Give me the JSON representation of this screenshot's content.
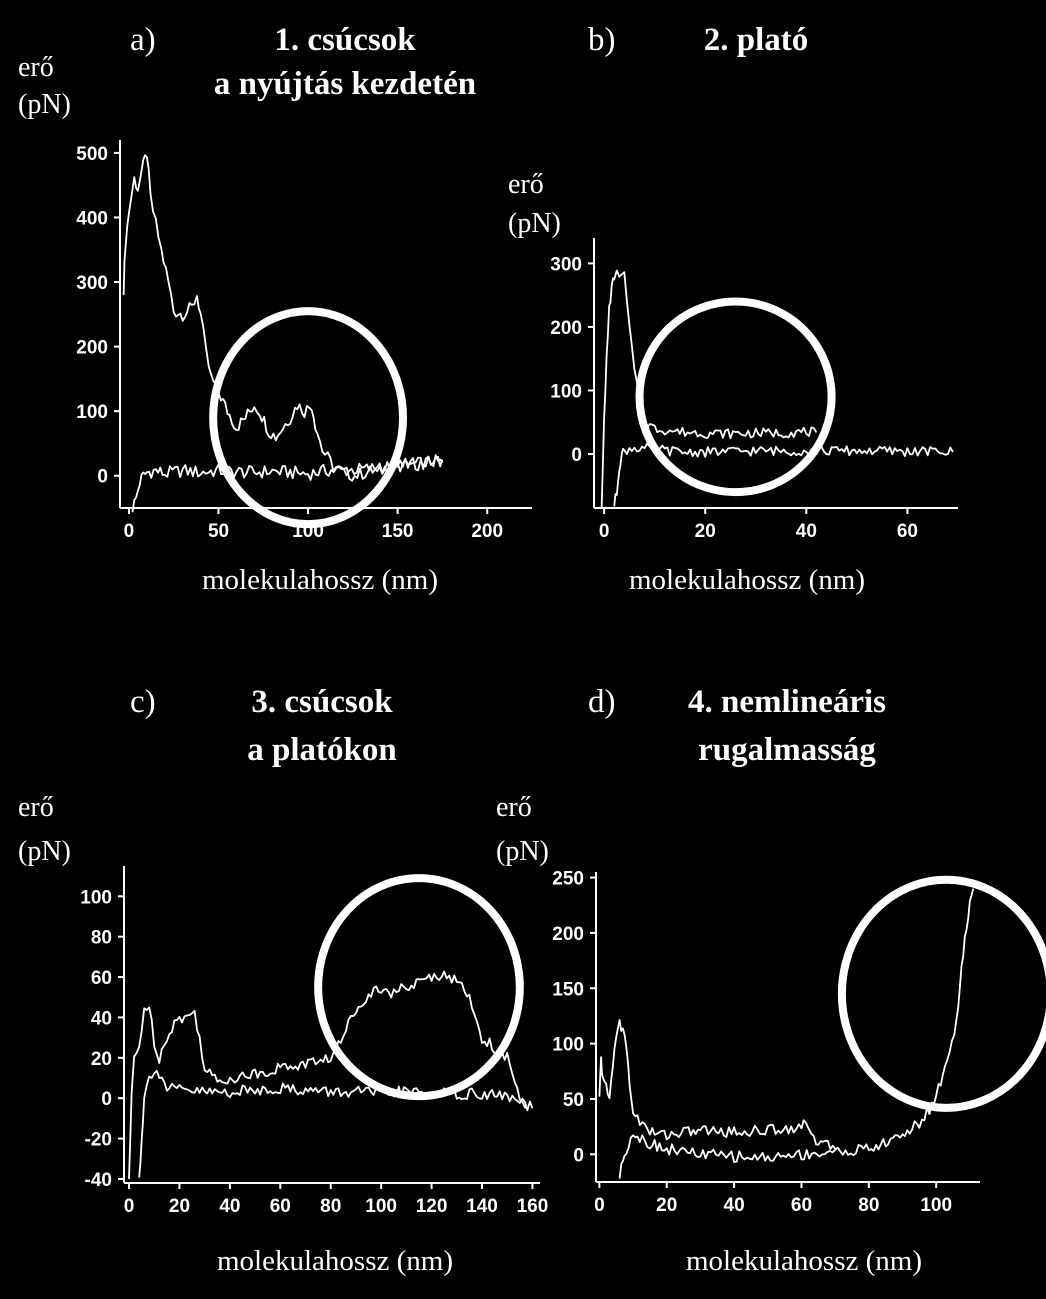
{
  "chart_data": [
    {
      "type": "line",
      "panel_letter": "a)",
      "title_lines": [
        "1. csúcsok",
        "a nyújtás kezdetén"
      ],
      "ylabel_lines": [
        "erő",
        "(pN)"
      ],
      "xlabel": "molekulahossz (nm)",
      "xticks": [
        "0",
        "50",
        "100",
        "150",
        "200"
      ],
      "yticks": [
        "500",
        "400",
        "300",
        "200",
        "100",
        "0"
      ],
      "xlim": [
        -5,
        225
      ],
      "ylim": [
        -50,
        520
      ],
      "highlight": {
        "x": 100,
        "y": 90,
        "rx": 53,
        "ry": 165
      },
      "series": [
        {
          "points": [
            [
              -3,
              290
            ],
            [
              -2,
              360
            ],
            [
              0,
              410
            ],
            [
              3,
              460
            ],
            [
              5,
              445
            ],
            [
              8,
              480
            ],
            [
              10,
              500
            ],
            [
              12,
              430
            ],
            [
              15,
              390
            ],
            [
              18,
              350
            ],
            [
              22,
              300
            ],
            [
              25,
              255
            ],
            [
              30,
              250
            ],
            [
              35,
              260
            ],
            [
              38,
              280
            ],
            [
              40,
              250
            ],
            [
              43,
              190
            ],
            [
              46,
              150
            ],
            [
              50,
              130
            ],
            [
              55,
              100
            ],
            [
              60,
              75
            ],
            [
              65,
              90
            ],
            [
              70,
              110
            ],
            [
              73,
              100
            ],
            [
              78,
              70
            ],
            [
              82,
              60
            ],
            [
              86,
              75
            ],
            [
              90,
              90
            ],
            [
              94,
              110
            ],
            [
              98,
              100
            ],
            [
              102,
              110
            ],
            [
              104,
              80
            ],
            [
              108,
              40
            ],
            [
              114,
              15
            ],
            [
              120,
              5
            ],
            [
              126,
              0
            ],
            [
              132,
              5
            ],
            [
              140,
              10
            ],
            [
              150,
              15
            ],
            [
              160,
              18
            ],
            [
              170,
              22
            ],
            [
              175,
              25
            ]
          ]
        },
        {
          "points": [
            [
              2,
              -50
            ],
            [
              4,
              -35
            ],
            [
              6,
              -10
            ],
            [
              8,
              0
            ],
            [
              10,
              5
            ],
            [
              15,
              8
            ],
            [
              20,
              3
            ],
            [
              30,
              8
            ],
            [
              40,
              5
            ],
            [
              50,
              8
            ],
            [
              60,
              6
            ],
            [
              70,
              5
            ],
            [
              80,
              7
            ],
            [
              90,
              5
            ],
            [
              100,
              3
            ],
            [
              110,
              8
            ],
            [
              120,
              8
            ],
            [
              130,
              10
            ],
            [
              140,
              12
            ],
            [
              150,
              15
            ],
            [
              160,
              18
            ],
            [
              170,
              22
            ],
            [
              175,
              20
            ]
          ]
        }
      ]
    },
    {
      "type": "line",
      "panel_letter": "b)",
      "title_lines": [
        "2. plató"
      ],
      "ylabel_lines": [
        "erő",
        "(pN)"
      ],
      "xlabel": "molekulahossz (nm)",
      "xticks": [
        "0",
        "20",
        "40",
        "60"
      ],
      "yticks": [
        "300",
        "200",
        "100",
        "0"
      ],
      "xlim": [
        -2,
        70
      ],
      "ylim": [
        -85,
        340
      ],
      "highlight": {
        "x": 26,
        "y": 90,
        "rx": 19,
        "ry": 150
      },
      "series": [
        {
          "points": [
            [
              -0.5,
              -80
            ],
            [
              0,
              50
            ],
            [
              0.5,
              150
            ],
            [
              1,
              230
            ],
            [
              1.5,
              260
            ],
            [
              2,
              280
            ],
            [
              3,
              285
            ],
            [
              4,
              280
            ],
            [
              5,
              200
            ],
            [
              6,
              130
            ],
            [
              7,
              80
            ],
            [
              8,
              50
            ],
            [
              10,
              40
            ],
            [
              15,
              35
            ],
            [
              20,
              33
            ],
            [
              25,
              32
            ],
            [
              30,
              33
            ],
            [
              35,
              33
            ],
            [
              40,
              35
            ],
            [
              42,
              34
            ]
          ]
        },
        {
          "points": [
            [
              2,
              -80
            ],
            [
              2.5,
              -60
            ],
            [
              3,
              -20
            ],
            [
              3.5,
              0
            ],
            [
              4,
              5
            ],
            [
              6,
              10
            ],
            [
              10,
              8
            ],
            [
              15,
              3
            ],
            [
              20,
              3
            ],
            [
              25,
              4
            ],
            [
              30,
              5
            ],
            [
              35,
              5
            ],
            [
              40,
              5
            ],
            [
              45,
              5
            ],
            [
              50,
              5
            ],
            [
              55,
              5
            ],
            [
              60,
              4
            ],
            [
              65,
              4
            ],
            [
              69,
              3
            ]
          ]
        }
      ]
    },
    {
      "type": "line",
      "panel_letter": "c)",
      "title_lines": [
        "3. csúcsok",
        "a platókon"
      ],
      "ylabel_lines": [
        "erő",
        "(pN)"
      ],
      "xlabel": "molekulahossz (nm)",
      "xticks": [
        "0",
        "20",
        "40",
        "60",
        "80",
        "100",
        "120",
        "140",
        "160"
      ],
      "yticks": [
        "100",
        "80",
        "60",
        "40",
        "20",
        "0",
        "-20",
        "-40"
      ],
      "xlim": [
        -2,
        163
      ],
      "ylim": [
        -42,
        115
      ],
      "highlight": {
        "x": 115,
        "y": 55,
        "rx": 40,
        "ry": 54
      },
      "series": [
        {
          "points": [
            [
              0,
              -40
            ],
            [
              1,
              0
            ],
            [
              2,
              20
            ],
            [
              4,
              25
            ],
            [
              6,
              45
            ],
            [
              8,
              45
            ],
            [
              10,
              28
            ],
            [
              12,
              20
            ],
            [
              15,
              30
            ],
            [
              18,
              38
            ],
            [
              22,
              40
            ],
            [
              26,
              42
            ],
            [
              28,
              30
            ],
            [
              30,
              15
            ],
            [
              35,
              8
            ],
            [
              40,
              10
            ],
            [
              50,
              12
            ],
            [
              60,
              15
            ],
            [
              70,
              17
            ],
            [
              80,
              20
            ],
            [
              85,
              30
            ],
            [
              88,
              40
            ],
            [
              92,
              48
            ],
            [
              96,
              52
            ],
            [
              100,
              55
            ],
            [
              105,
              52
            ],
            [
              110,
              55
            ],
            [
              115,
              57
            ],
            [
              120,
              60
            ],
            [
              125,
              62
            ],
            [
              130,
              58
            ],
            [
              135,
              50
            ],
            [
              140,
              30
            ],
            [
              145,
              25
            ],
            [
              150,
              20
            ],
            [
              152,
              10
            ],
            [
              155,
              0
            ],
            [
              158,
              -5
            ]
          ]
        },
        {
          "points": [
            [
              4,
              -40
            ],
            [
              5,
              -20
            ],
            [
              6,
              0
            ],
            [
              8,
              10
            ],
            [
              10,
              15
            ],
            [
              12,
              12
            ],
            [
              15,
              5
            ],
            [
              20,
              4
            ],
            [
              30,
              3
            ],
            [
              40,
              3
            ],
            [
              50,
              4
            ],
            [
              60,
              5
            ],
            [
              70,
              4
            ],
            [
              80,
              3
            ],
            [
              90,
              3
            ],
            [
              100,
              3
            ],
            [
              110,
              3
            ],
            [
              120,
              3
            ],
            [
              130,
              2
            ],
            [
              140,
              2
            ],
            [
              150,
              1
            ],
            [
              160,
              -5
            ]
          ]
        }
      ]
    },
    {
      "type": "line",
      "panel_letter": "d)",
      "title_lines": [
        "4. nemlineáris",
        "rugalmasság"
      ],
      "ylabel_lines": [
        "erő",
        "(pN)"
      ],
      "xlabel": "molekulahossz (nm)",
      "xticks": [
        "0",
        "20",
        "40",
        "60",
        "80",
        "100"
      ],
      "yticks": [
        "250",
        "200",
        "150",
        "100",
        "50",
        "0"
      ],
      "xlim": [
        -1,
        113
      ],
      "ylim": [
        -25,
        255
      ],
      "highlight": {
        "x": 103,
        "y": 145,
        "rx": 31,
        "ry": 103
      },
      "series": [
        {
          "points": [
            [
              0,
              50
            ],
            [
              0.5,
              85
            ],
            [
              1,
              70
            ],
            [
              2,
              60
            ],
            [
              3,
              50
            ],
            [
              4,
              80
            ],
            [
              5,
              110
            ],
            [
              6,
              120
            ],
            [
              7,
              110
            ],
            [
              8,
              100
            ],
            [
              9,
              60
            ],
            [
              10,
              40
            ],
            [
              12,
              30
            ],
            [
              15,
              20
            ],
            [
              20,
              18
            ],
            [
              25,
              20
            ],
            [
              30,
              22
            ],
            [
              40,
              20
            ],
            [
              50,
              22
            ],
            [
              60,
              25
            ],
            [
              62,
              28
            ],
            [
              63,
              20
            ],
            [
              65,
              10
            ],
            [
              70,
              5
            ]
          ]
        },
        {
          "points": [
            [
              6,
              -20
            ],
            [
              7,
              -5
            ],
            [
              8,
              5
            ],
            [
              10,
              20
            ],
            [
              12,
              15
            ],
            [
              15,
              10
            ],
            [
              20,
              5
            ],
            [
              30,
              0
            ],
            [
              40,
              -2
            ],
            [
              50,
              -3
            ],
            [
              60,
              0
            ],
            [
              70,
              2
            ],
            [
              80,
              5
            ],
            [
              85,
              10
            ],
            [
              90,
              18
            ],
            [
              95,
              28
            ],
            [
              98,
              40
            ],
            [
              100,
              55
            ],
            [
              102,
              70
            ],
            [
              104,
              95
            ],
            [
              106,
              120
            ],
            [
              107,
              150
            ],
            [
              108,
              180
            ],
            [
              109,
              205
            ],
            [
              110,
              225
            ],
            [
              111,
              240
            ]
          ]
        }
      ]
    }
  ]
}
